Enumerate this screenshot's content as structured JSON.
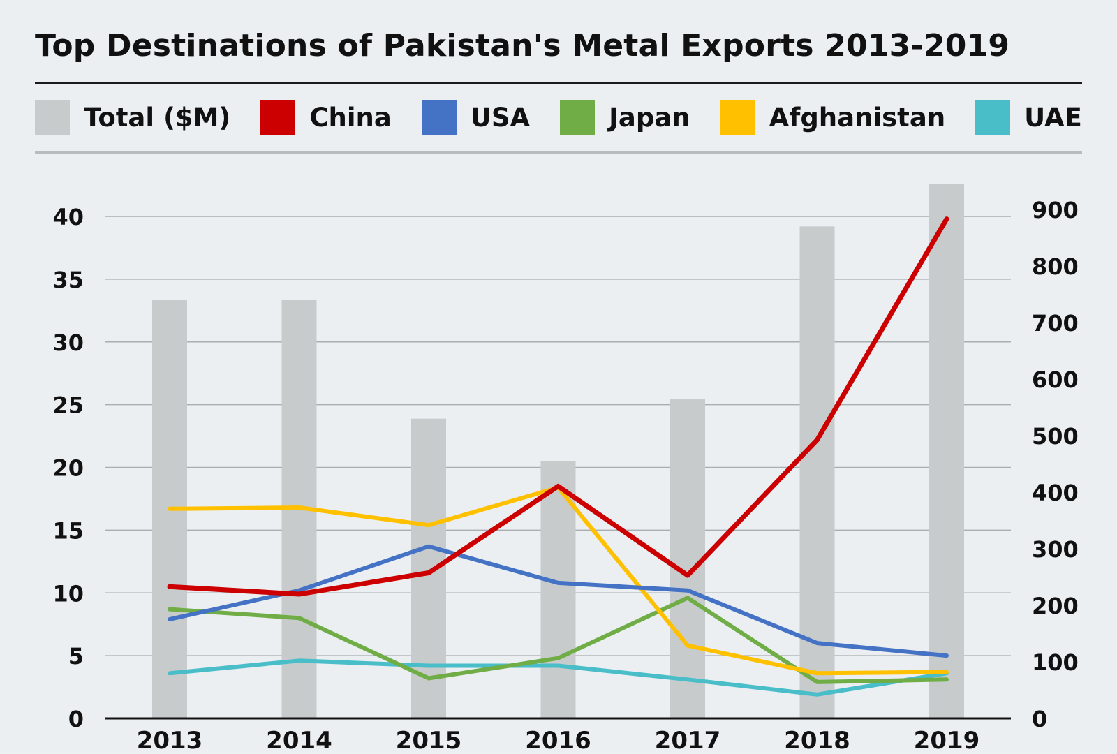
{
  "title": "Top Destinations of Pakistan's Metal Exports 2013-2019",
  "legend": [
    {
      "label": "Total ($M)",
      "color": "#c8cbcc"
    },
    {
      "label": "China",
      "color": "#cc0000"
    },
    {
      "label": "USA",
      "color": "#4472c4"
    },
    {
      "label": "Japan",
      "color": "#70ad47"
    },
    {
      "label": "Afghanistan",
      "color": "#ffc000"
    },
    {
      "label": "UAE",
      "color": "#4abec8"
    }
  ],
  "chart_data": {
    "type": "bar",
    "title": "Top Destinations of Pakistan's Metal Exports 2013-2019",
    "categories": [
      "2013",
      "2014",
      "2015",
      "2016",
      "2017",
      "2018",
      "2019"
    ],
    "left_axis": {
      "ylim": [
        0,
        40
      ],
      "ticks": [
        "0",
        "5",
        "10",
        "15",
        "20",
        "25",
        "30",
        "35",
        "40"
      ]
    },
    "right_axis": {
      "ylim": [
        0,
        900
      ],
      "ticks": [
        "0",
        "100",
        "200",
        "300",
        "400",
        "500",
        "600",
        "700",
        "800",
        "900"
      ]
    },
    "bars": {
      "name": "Total ($M)",
      "axis": "right",
      "color": "#c8cbcc",
      "values": [
        740,
        740,
        530,
        455,
        565,
        870,
        945
      ]
    },
    "series": [
      {
        "name": "China",
        "type": "line",
        "axis": "left",
        "color": "#cc0000",
        "values": [
          10.5,
          9.9,
          11.6,
          18.5,
          11.4,
          22.2,
          39.8
        ]
      },
      {
        "name": "USA",
        "type": "line",
        "axis": "left",
        "color": "#4472c4",
        "values": [
          7.9,
          10.2,
          13.7,
          10.8,
          10.2,
          6.0,
          5.0
        ]
      },
      {
        "name": "Japan",
        "type": "line",
        "axis": "left",
        "color": "#70ad47",
        "values": [
          8.7,
          8.0,
          3.2,
          4.8,
          9.6,
          2.9,
          3.1
        ]
      },
      {
        "name": "Afghanistan",
        "type": "line",
        "axis": "left",
        "color": "#ffc000",
        "values": [
          16.7,
          16.8,
          15.4,
          18.4,
          5.8,
          3.6,
          3.7
        ]
      },
      {
        "name": "UAE",
        "type": "line",
        "axis": "left",
        "color": "#4abec8",
        "values": [
          3.6,
          4.6,
          4.2,
          4.2,
          3.1,
          1.9,
          3.6
        ]
      }
    ],
    "grid": true,
    "legend_position": "top"
  }
}
